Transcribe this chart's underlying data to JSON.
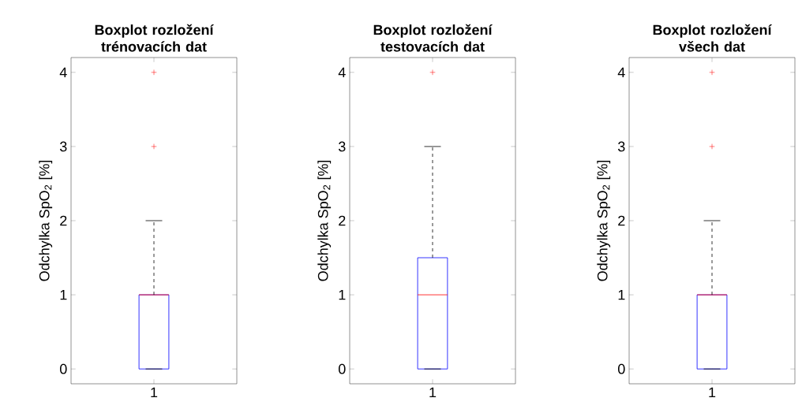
{
  "chart_data": [
    {
      "type": "box",
      "title": "Boxplot rozložení trénovacích dat",
      "ylabel": "Odchylka SpO$_{2}$ [%]",
      "categories": [
        "1"
      ],
      "color": "#0000ff",
      "marker": "cross",
      "boxes": [
        {
          "low": 0,
          "q1": 0,
          "median": 1,
          "q3": 1,
          "high": 2,
          "outliers": [
            3,
            4
          ]
        }
      ],
      "ylim": [
        -0.2,
        4.2
      ],
      "yticks": [
        0,
        1,
        2,
        3,
        4
      ]
    },
    {
      "type": "box",
      "title": "Boxplot rozložení testovacích dat",
      "ylabel": "Odchylka SpO$_{2}$ [%]",
      "categories": [
        "1"
      ],
      "color": "#0000ff",
      "marker": "cross",
      "boxes": [
        {
          "low": 0,
          "q1": 0,
          "median": 1,
          "q3": 1.5,
          "high": 3,
          "outliers": [
            4
          ]
        }
      ],
      "ylim": [
        -0.2,
        4.2
      ],
      "yticks": [
        0,
        1,
        2,
        3,
        4
      ]
    },
    {
      "type": "box",
      "title": "Boxplot rozložení všech dat",
      "ylabel": "Odchylka SpO$_{2}$ [%]",
      "categories": [
        "1"
      ],
      "color": "#0000ff",
      "marker": "cross",
      "boxes": [
        {
          "low": 0,
          "q1": 0,
          "median": 1,
          "q3": 1,
          "high": 2,
          "outliers": [
            3,
            4
          ]
        }
      ],
      "ylim": [
        -0.2,
        4.2
      ],
      "yticks": [
        0,
        1,
        2,
        3,
        4
      ]
    }
  ]
}
